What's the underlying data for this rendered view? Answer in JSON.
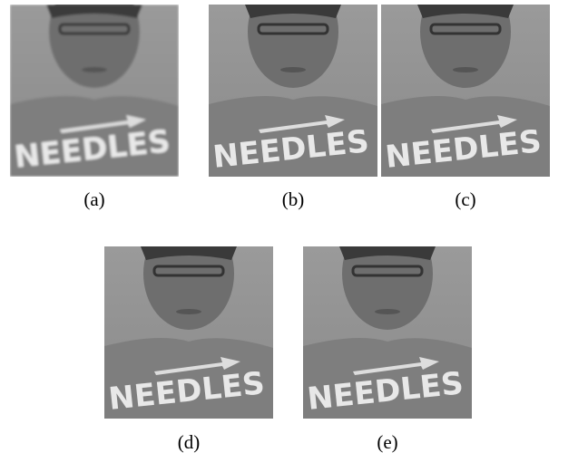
{
  "figure": {
    "panels": [
      {
        "label": "(a)"
      },
      {
        "label": "(b)"
      },
      {
        "label": "(c)"
      },
      {
        "label": "(d)"
      },
      {
        "label": "(e)"
      }
    ],
    "image_text": "NEEDLES"
  }
}
